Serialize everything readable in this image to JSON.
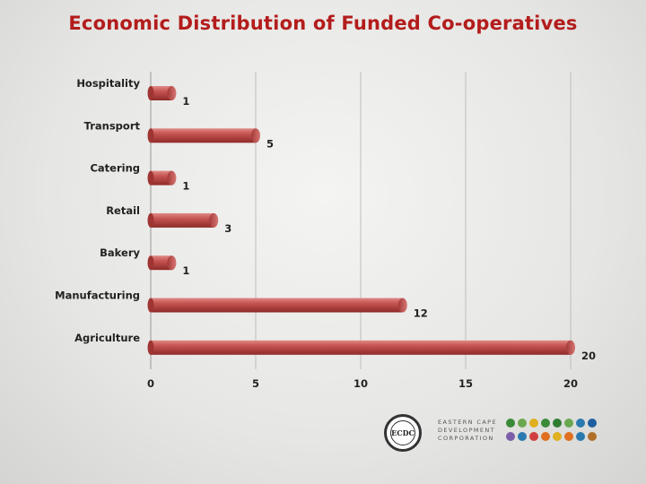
{
  "header": {
    "title": "Economic Distribution of Funded Co-operatives"
  },
  "chart_data": {
    "type": "bar",
    "orientation": "horizontal",
    "style": "3d-cylinder",
    "title": "Economic Distribution of Funded Co-operatives",
    "categories": [
      "Hospitality",
      "Transport",
      "Catering",
      "Retail",
      "Bakery",
      "Manufacturing",
      "Agriculture"
    ],
    "values": [
      1,
      5,
      1,
      3,
      1,
      12,
      20
    ],
    "xticks": [
      "0",
      "5",
      "10",
      "15",
      "20"
    ],
    "xlim": [
      0,
      20
    ],
    "xlabel": "",
    "ylabel": "",
    "grid": true,
    "bar_color": "#c0504d"
  },
  "footer": {
    "logo_text": "ECDC",
    "org_name_lines": [
      "EASTERN CAPE",
      "DEVELOPMENT",
      "CORPORATION"
    ],
    "icon_colors": [
      "#3a8a3a",
      "#6aa84f",
      "#e0b020",
      "#3a8a3a",
      "#2e7d32",
      "#6aa84f",
      "#2a7ab0",
      "#1f5fa0",
      "#7b5ea7",
      "#2a7ab0",
      "#d04040",
      "#e07020",
      "#e0b020",
      "#e07020",
      "#2a7ab0",
      "#b0702a"
    ]
  }
}
